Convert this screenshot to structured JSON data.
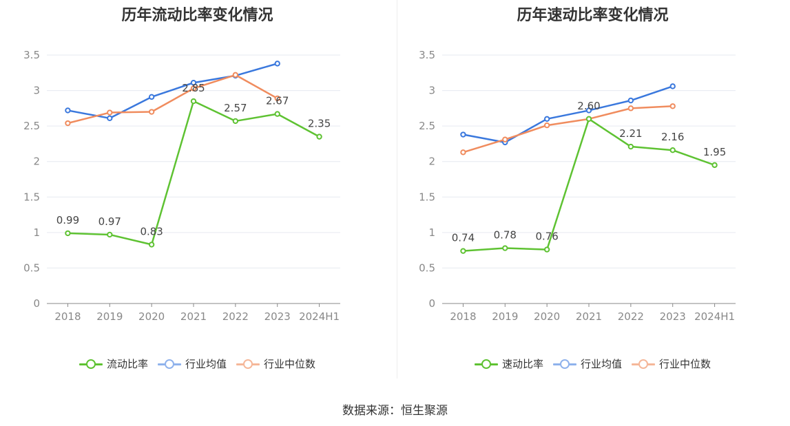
{
  "source_text": "数据来源：恒生聚源",
  "chart_data": [
    {
      "type": "line",
      "title": "历年流动比率变化情况",
      "categories": [
        "2018",
        "2019",
        "2020",
        "2021",
        "2022",
        "2023",
        "2024H1"
      ],
      "ylim": [
        0,
        3.5
      ],
      "yticks": [
        "0",
        "0.5",
        "1",
        "1.5",
        "2",
        "2.5",
        "3",
        "3.5"
      ],
      "grid": true,
      "legend_position": "bottom",
      "series": [
        {
          "name": "流动比率",
          "color": "#5ec232",
          "values": [
            0.99,
            0.97,
            0.83,
            2.85,
            2.57,
            2.67,
            2.35
          ],
          "labels": [
            "0.99",
            "0.97",
            "0.83",
            "2.85",
            "2.57",
            "2.67",
            "2.35"
          ]
        },
        {
          "name": "行业均值",
          "color": "#3a78dd",
          "values": [
            2.72,
            2.61,
            2.91,
            3.11,
            3.21,
            3.38,
            null
          ]
        },
        {
          "name": "行业中位数",
          "color": "#f08c5e",
          "values": [
            2.54,
            2.69,
            2.7,
            3.03,
            3.22,
            2.89,
            null
          ]
        }
      ]
    },
    {
      "type": "line",
      "title": "历年速动比率变化情况",
      "categories": [
        "2018",
        "2019",
        "2020",
        "2021",
        "2022",
        "2023",
        "2024H1"
      ],
      "ylim": [
        0,
        3.5
      ],
      "yticks": [
        "0",
        "0.5",
        "1",
        "1.5",
        "2",
        "2.5",
        "3",
        "3.5"
      ],
      "grid": true,
      "legend_position": "bottom",
      "series": [
        {
          "name": "速动比率",
          "color": "#5ec232",
          "values": [
            0.74,
            0.78,
            0.76,
            2.6,
            2.21,
            2.16,
            1.95
          ],
          "labels": [
            "0.74",
            "0.78",
            "0.76",
            "2.60",
            "2.21",
            "2.16",
            "1.95"
          ]
        },
        {
          "name": "行业均值",
          "color": "#3a78dd",
          "values": [
            2.38,
            2.27,
            2.6,
            2.72,
            2.86,
            3.06,
            null
          ]
        },
        {
          "name": "行业中位数",
          "color": "#f08c5e",
          "values": [
            2.13,
            2.31,
            2.51,
            2.6,
            2.75,
            2.78,
            null
          ]
        }
      ]
    }
  ]
}
